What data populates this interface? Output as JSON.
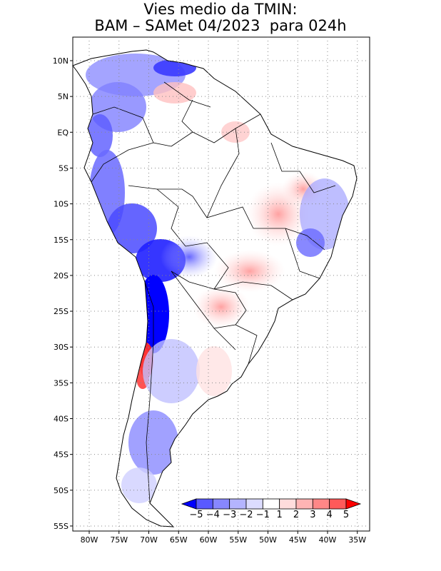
{
  "title": {
    "line1": "Vies medio da TMIN:",
    "line2": "BAM – SAMet 04/2023  para 024h"
  },
  "map": {
    "lat_labels": [
      "10N",
      "5N",
      "EQ",
      "5S",
      "10S",
      "15S",
      "20S",
      "25S",
      "30S",
      "35S",
      "40S",
      "45S",
      "50S",
      "55S"
    ],
    "lon_labels": [
      "80W",
      "75W",
      "70W",
      "65W",
      "60W",
      "55W",
      "50W",
      "45W",
      "40W",
      "35W"
    ],
    "lat_range": [
      -55.5,
      13.5
    ],
    "lon_range": [
      -84.5,
      -34.5
    ],
    "grid": "dotted",
    "region": "South America"
  },
  "colorbar": {
    "labels": [
      "-5",
      "-4",
      "-3",
      "-2",
      "-1",
      "1",
      "2",
      "3",
      "4",
      "5"
    ],
    "colors": [
      "#0000ff",
      "#5959ff",
      "#8787ff",
      "#b4b4ff",
      "#dcdcff",
      "#ffffff",
      "#ffdcdc",
      "#ffb4b4",
      "#ff8787",
      "#ff5a5a",
      "#ff0000"
    ]
  }
}
